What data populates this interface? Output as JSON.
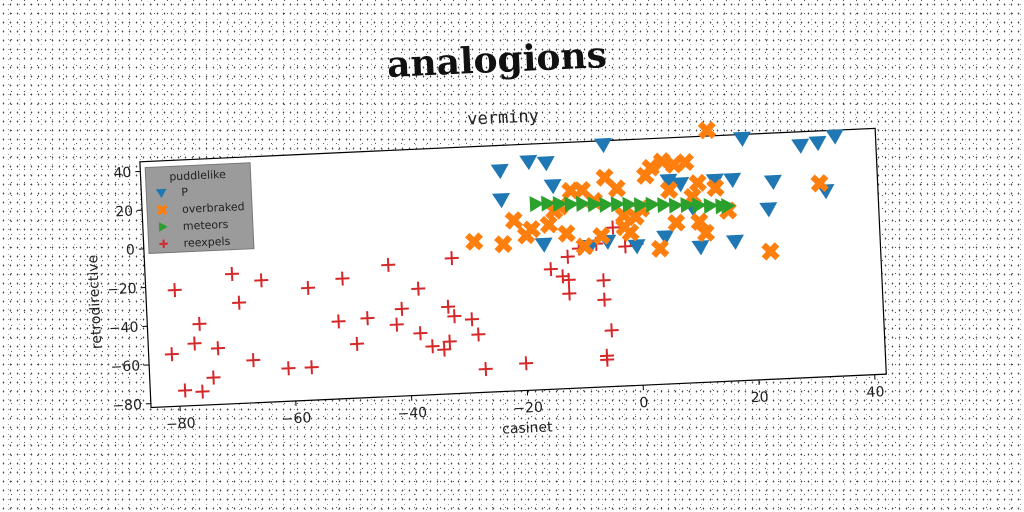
{
  "chart_data": {
    "type": "scatter",
    "title": "analogions",
    "subtitle": "verminy",
    "xlabel": "casinet",
    "ylabel": "retrodirective",
    "xlim": [
      -85,
      42
    ],
    "ylim": [
      -82,
      45
    ],
    "xticks": [
      -80,
      -60,
      -40,
      -20,
      0,
      20,
      40
    ],
    "yticks": [
      -80,
      -60,
      -40,
      -20,
      0,
      20,
      40
    ],
    "grid": false,
    "legend": {
      "title": "puddlelike",
      "placement": "top-left"
    },
    "series": [
      {
        "name": "P",
        "marker": "triangle-down",
        "color": "#1f77b4",
        "points": [
          [
            -23,
            32
          ],
          [
            -18,
            36
          ],
          [
            -15,
            35
          ],
          [
            -14,
            23
          ],
          [
            -23,
            17
          ],
          [
            -5,
            43
          ],
          [
            6,
            23
          ],
          [
            8,
            21
          ],
          [
            14,
            22
          ],
          [
            17,
            22
          ],
          [
            19,
            43
          ],
          [
            24,
            20
          ],
          [
            29,
            38
          ],
          [
            32,
            39
          ],
          [
            35,
            42
          ],
          [
            33,
            14
          ],
          [
            23,
            6
          ],
          [
            -16,
            -7
          ],
          [
            -8,
            -9
          ],
          [
            -5,
            -7
          ],
          [
            0,
            -10
          ],
          [
            5,
            -6
          ],
          [
            11,
            -12
          ],
          [
            17,
            -10
          ],
          [
            10,
            8
          ]
        ]
      },
      {
        "name": "overbraked",
        "marker": "x-thick",
        "color": "#ff7f0e",
        "points": [
          [
            -28,
            -4
          ],
          [
            -23,
            -6
          ],
          [
            -21,
            6
          ],
          [
            -18,
            1
          ],
          [
            -15,
            3
          ],
          [
            -13,
            12
          ],
          [
            -11,
            20
          ],
          [
            -9,
            20
          ],
          [
            -7,
            14
          ],
          [
            -5,
            26
          ],
          [
            -3,
            20
          ],
          [
            -2,
            6
          ],
          [
            0,
            5
          ],
          [
            2,
            26
          ],
          [
            3,
            30
          ],
          [
            5,
            33
          ],
          [
            7,
            31
          ],
          [
            9,
            32
          ],
          [
            11,
            21
          ],
          [
            13,
            48
          ],
          [
            14,
            18
          ],
          [
            16,
            6
          ],
          [
            12,
            -5
          ],
          [
            7,
            1
          ],
          [
            -1,
            -3
          ],
          [
            4,
            -12
          ],
          [
            -9,
            -9
          ],
          [
            -12,
            -2
          ],
          [
            -6,
            -4
          ],
          [
            23,
            -16
          ],
          [
            32,
            18
          ],
          [
            -2,
            0
          ],
          [
            6,
            18
          ],
          [
            10,
            14
          ],
          [
            -14,
            10
          ],
          [
            1,
            9
          ],
          [
            -19,
            -2
          ],
          [
            11,
            1
          ]
        ]
      },
      {
        "name": "meteors",
        "marker": "triangle-right",
        "color": "#2ca02c",
        "points": [
          [
            -17,
            14
          ],
          [
            -15,
            14
          ],
          [
            -13,
            13.5
          ],
          [
            -11,
            13
          ],
          [
            -9,
            13
          ],
          [
            -7,
            12.5
          ],
          [
            -5,
            12
          ],
          [
            -3,
            12
          ],
          [
            -1,
            11.5
          ],
          [
            1,
            11
          ],
          [
            3,
            11
          ],
          [
            5,
            10.5
          ],
          [
            7,
            10
          ],
          [
            9,
            10
          ],
          [
            11,
            9.5
          ],
          [
            13,
            9
          ],
          [
            15,
            8.5
          ],
          [
            16,
            8.5
          ]
        ]
      },
      {
        "name": "reexpels",
        "marker": "plus",
        "color": "#d62728",
        "points": [
          [
            -80,
            -22
          ],
          [
            -81,
            -55
          ],
          [
            -79,
            -74
          ],
          [
            -76,
            -75
          ],
          [
            -74,
            -68
          ],
          [
            -76,
            -40
          ],
          [
            -77,
            -50
          ],
          [
            -73,
            -53
          ],
          [
            -70,
            -15
          ],
          [
            -69,
            -30
          ],
          [
            -67,
            -60
          ],
          [
            -65,
            -19
          ],
          [
            -61,
            -65
          ],
          [
            -57,
            -24
          ],
          [
            -57,
            -65
          ],
          [
            -51,
            -20
          ],
          [
            -52,
            -42
          ],
          [
            -49,
            -54
          ],
          [
            -47,
            -41
          ],
          [
            -43,
            -14
          ],
          [
            -41,
            -37
          ],
          [
            -42,
            -45
          ],
          [
            -38,
            -27
          ],
          [
            -38,
            -50
          ],
          [
            -36,
            -57
          ],
          [
            -34,
            -59
          ],
          [
            -33,
            -55
          ],
          [
            -33,
            -37
          ],
          [
            -32,
            -12
          ],
          [
            -32,
            -42
          ],
          [
            -29,
            -44
          ],
          [
            -28,
            -52
          ],
          [
            -27,
            -70
          ],
          [
            -20,
            -68
          ],
          [
            -15,
            -20
          ],
          [
            -13,
            -24
          ],
          [
            -12,
            -26
          ],
          [
            -12,
            -33
          ],
          [
            -12,
            -14
          ],
          [
            -10,
            -10
          ],
          [
            -6,
            -27
          ],
          [
            -6,
            -37
          ],
          [
            -5,
            -53
          ],
          [
            -6,
            -66
          ],
          [
            -6,
            -68
          ],
          [
            -7,
            -8
          ],
          [
            -4,
            0
          ],
          [
            -2,
            -10
          ],
          [
            0,
            -9
          ]
        ]
      }
    ]
  }
}
